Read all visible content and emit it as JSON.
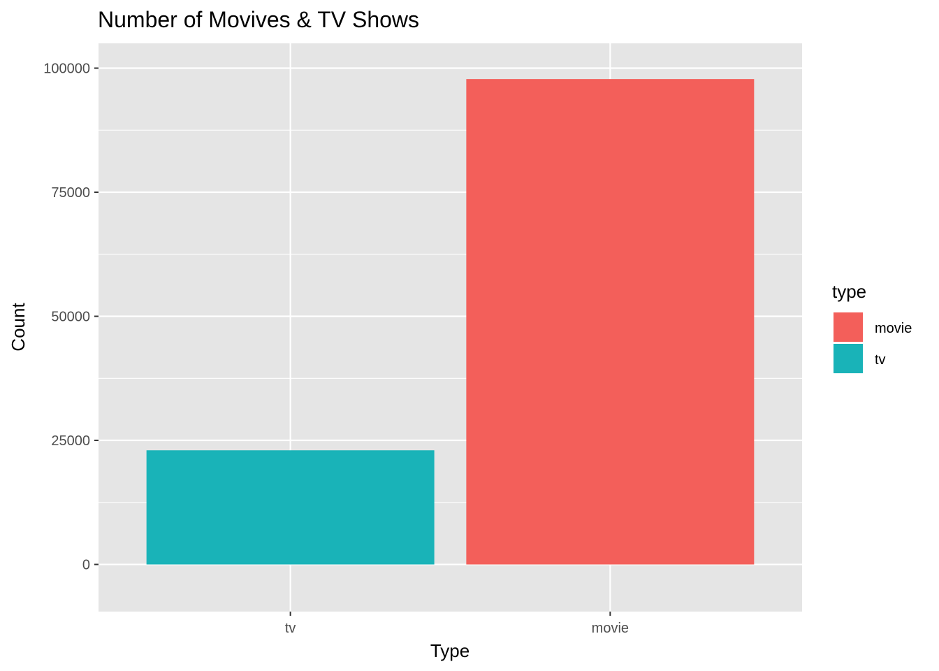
{
  "chart_data": {
    "type": "bar",
    "title": "Number of Movives & TV Shows",
    "xlabel": "Type",
    "ylabel": "Count",
    "categories": [
      "tv",
      "movie"
    ],
    "values": [
      23000,
      97800
    ],
    "bar_colors": [
      "#19B3B8",
      "#F35F5A"
    ],
    "ylim": [
      -9500,
      105000
    ],
    "yticks": [
      0,
      25000,
      50000,
      75000,
      100000
    ],
    "ytick_labels": [
      "0",
      "25000",
      "50000",
      "75000",
      "100000"
    ],
    "minor_yticks": [
      12500,
      37500,
      62500,
      87500
    ],
    "grid": true,
    "panel_background": "#E5E5E5",
    "grid_color": "#FFFFFF",
    "legend": {
      "title": "type",
      "position": "right",
      "entries": [
        {
          "label": "movie",
          "color": "#F35F5A"
        },
        {
          "label": "tv",
          "color": "#19B3B8"
        }
      ]
    }
  }
}
